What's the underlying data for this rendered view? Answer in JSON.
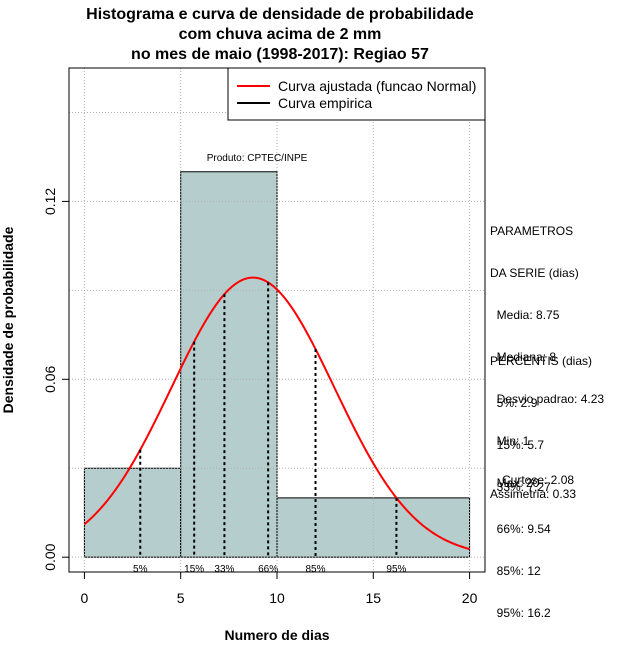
{
  "chart_data": {
    "type": "bar",
    "title": [
      "Histograma e curva de densidade de probabilidade",
      "com chuva acima de 2 mm",
      "no mes de maio (1998-2017): Regiao 57"
    ],
    "xlabel": "Numero de dias",
    "ylabel": "Densidade de probabilidade",
    "xlim": [
      -0.8,
      20.8
    ],
    "ylim": [
      -0.005,
      0.165
    ],
    "x_ticks": [
      0,
      5,
      10,
      15,
      20
    ],
    "x_tick_labels": [
      "0",
      "5",
      "10",
      "15",
      "20"
    ],
    "y_ticks": [
      0.0,
      0.06,
      0.12
    ],
    "y_tick_labels": [
      "0.00",
      "0.06",
      "0.12"
    ],
    "grid": true,
    "bins": [
      {
        "start": 0,
        "end": 5,
        "density": 0.03
      },
      {
        "start": 5,
        "end": 10,
        "density": 0.13
      },
      {
        "start": 10,
        "end": 20,
        "density": 0.02
      }
    ],
    "bar_color": "#b5cdcd",
    "curve_color": "#ff0000",
    "normal_fit": {
      "mean": 8.75,
      "sd": 4.23
    },
    "percentiles": [
      {
        "label": "5%",
        "value": 2.9
      },
      {
        "label": "15%",
        "value": 5.7
      },
      {
        "label": "33%",
        "value": 7.27
      },
      {
        "label": "66%",
        "value": 9.54
      },
      {
        "label": "85%",
        "value": 12
      },
      {
        "label": "95%",
        "value": 16.2
      }
    ],
    "legend": {
      "placement": "top-right",
      "entries": [
        {
          "label": "Curva ajustada (funcao Normal)",
          "color": "#ff0000"
        },
        {
          "label": "Curva empirica",
          "color": "#000000"
        }
      ]
    },
    "annotation": "Produto: CPTEC/INPE"
  },
  "side_panel": {
    "params_title": [
      "PARAMETROS",
      "DA SERIE (dias)"
    ],
    "params": [
      "  Media: 8.75",
      "  Mediana: 8",
      "  Desvio padrao: 4.23",
      "  Min: 1",
      "  Max: 20"
    ],
    "percentis_title": "PERCENTIS (dias)",
    "percentis": [
      "  5%: 2.9",
      "  15%: 5.7",
      "  33%: 7.27",
      "  66%: 9.54",
      "  85%: 12",
      "  95%: 16.2"
    ],
    "curtose": "Curtose: 2.08",
    "assimetria": "Assimetria: 0.33"
  }
}
